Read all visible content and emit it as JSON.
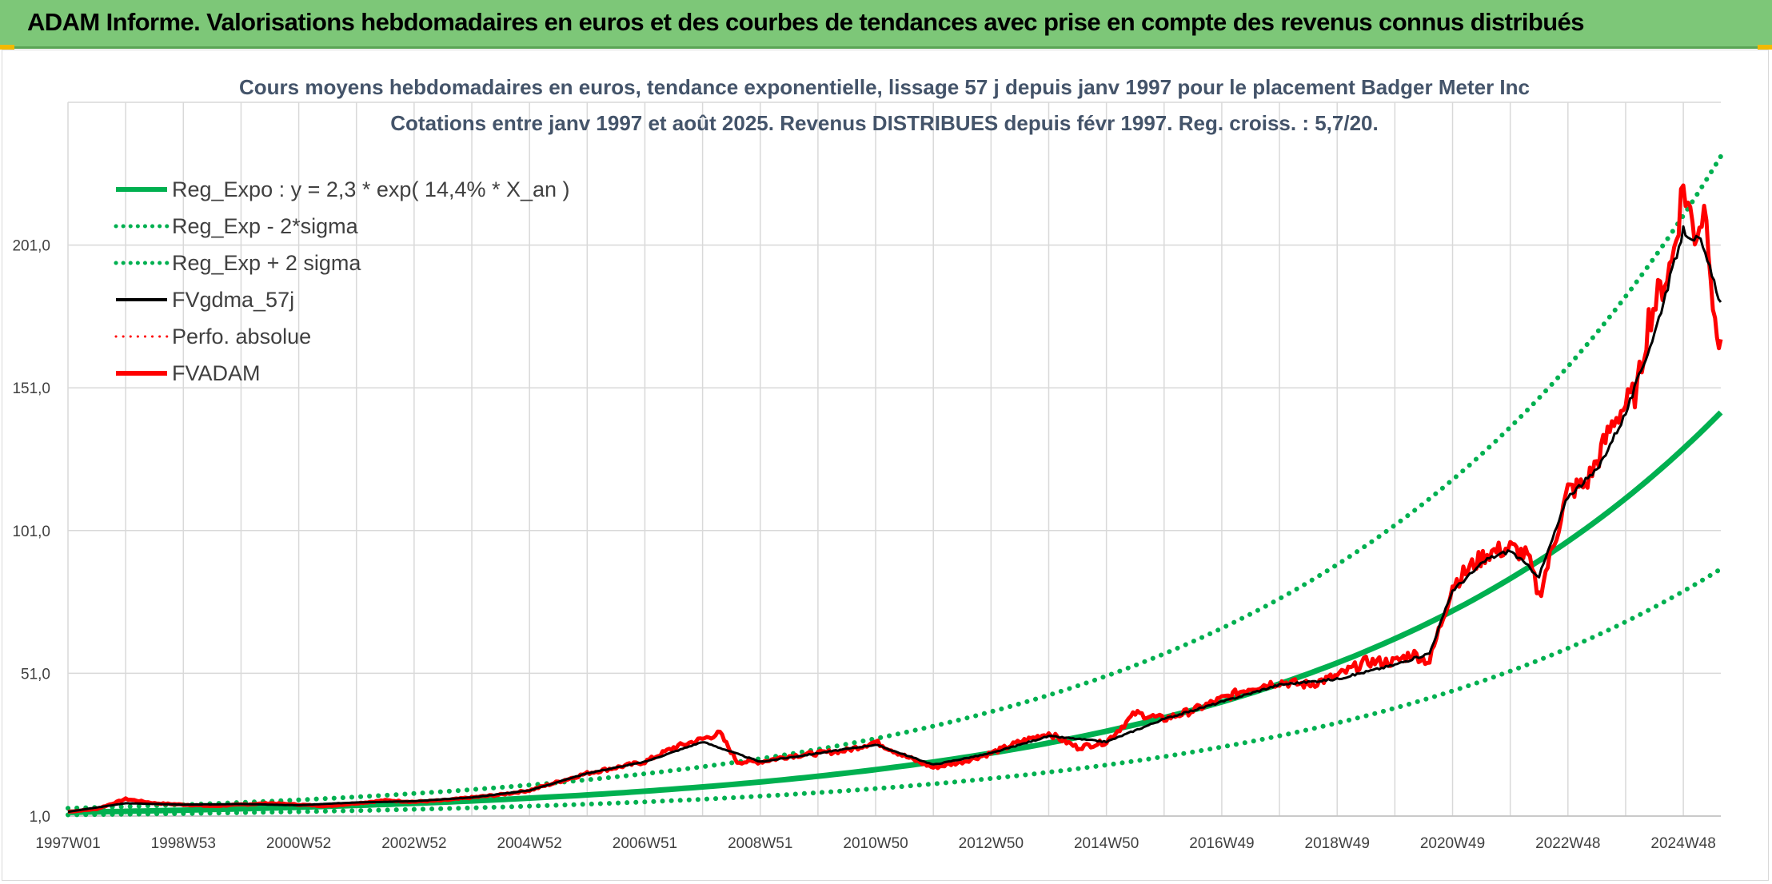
{
  "banner": {
    "title": "ADAM Informe. Valorisations hebdomadaires en euros et des courbes de tendances avec prise en compte des revenus connus distribués"
  },
  "colors": {
    "banner_bg": "#7dc778",
    "reg_expo": "#00b050",
    "fvgdma": "#000000",
    "fvadam": "#ff0000",
    "perfo": "#ff0000",
    "grid": "#d9d9d9",
    "title_text": "#44546a"
  },
  "chart_data": {
    "type": "line",
    "title": "Cours moyens hebdomadaires en euros, tendance exponentielle, lissage 57 j depuis janv 1997 pour le placement Badger Meter Inc",
    "subtitle": "Cotations entre janv 1997 et août 2025. Revenus DISTRIBUES depuis févr 1997. Reg. croiss. : 5,7/20.",
    "x_tick_labels": [
      "1997W01",
      "1998W53",
      "2000W52",
      "2002W52",
      "2004W52",
      "2006W51",
      "2008W51",
      "2010W50",
      "2012W50",
      "2014W50",
      "2016W49",
      "2018W49",
      "2020W49",
      "2022W48",
      "2024W48"
    ],
    "x_range_years": [
      1997.0,
      2025.65
    ],
    "y_tick_labels": [
      "1,0",
      "51,0",
      "101,0",
      "151,0",
      "201,0"
    ],
    "y_ticks": [
      1,
      51,
      101,
      151,
      201
    ],
    "ylim": [
      1,
      251
    ],
    "grid": true,
    "legend_position": "top-left",
    "legend": [
      {
        "label": "Reg_Expo : y = 2,3 * exp( 14,4% *  X_an )",
        "style": "solid-thick",
        "color": "#00b050"
      },
      {
        "label": "Reg_Exp - 2*sigma",
        "style": "dotted",
        "color": "#00b050"
      },
      {
        "label": "Reg_Exp + 2 sigma",
        "style": "dotted",
        "color": "#00b050"
      },
      {
        "label": "FVgdma_57j",
        "style": "solid",
        "color": "#000000"
      },
      {
        "label": "Perfo. absolue",
        "style": "dotted",
        "color": "#ff0000"
      },
      {
        "label": "FVADAM",
        "style": "solid-thick",
        "color": "#ff0000"
      }
    ],
    "trend": {
      "a": 2.3,
      "growth": 0.144,
      "lower_factor": 0.615,
      "upper_factor": 1.63
    },
    "series": [
      {
        "name": "FVADAM",
        "x": [
          1997.0,
          1997.5,
          1998.0,
          1998.5,
          1999.0,
          1999.5,
          2000.0,
          2000.5,
          2001.0,
          2001.5,
          2002.0,
          2002.5,
          2003.0,
          2003.5,
          2004.0,
          2004.5,
          2005.0,
          2005.5,
          2006.0,
          2006.5,
          2007.0,
          2007.5,
          2008.0,
          2008.3,
          2008.6,
          2009.0,
          2009.5,
          2010.0,
          2010.5,
          2011.0,
          2011.5,
          2012.0,
          2012.5,
          2013.0,
          2013.5,
          2014.0,
          2014.5,
          2015.0,
          2015.5,
          2016.0,
          2016.5,
          2017.0,
          2017.5,
          2018.0,
          2018.5,
          2019.0,
          2019.5,
          2020.0,
          2020.3,
          2020.6,
          2021.0,
          2021.3,
          2021.6,
          2022.0,
          2022.3,
          2022.5,
          2022.8,
          2023.0,
          2023.3,
          2023.5,
          2023.8,
          2024.0,
          2024.2,
          2024.4,
          2024.6,
          2024.8,
          2025.0,
          2025.2,
          2025.4,
          2025.55,
          2025.65
        ],
        "y": [
          2.5,
          3.5,
          7.0,
          5.5,
          5.0,
          4.5,
          5.0,
          5.5,
          5.0,
          4.5,
          5.5,
          6.5,
          6.0,
          6.5,
          7.5,
          8.5,
          10.0,
          13.0,
          16.0,
          18.0,
          20.0,
          25.0,
          28.0,
          30.0,
          20.0,
          20.0,
          22.0,
          23.0,
          24.0,
          27.0,
          22.0,
          18.0,
          20.0,
          23.0,
          27.0,
          30.0,
          25.0,
          27.0,
          37.0,
          35.0,
          38.0,
          42.0,
          46.0,
          48.0,
          47.0,
          50.0,
          55.0,
          55.0,
          58.0,
          55.0,
          82.0,
          88.0,
          93.0,
          95.0,
          92.0,
          78.0,
          100.0,
          115.0,
          117.0,
          125.0,
          140.0,
          145.0,
          150.0,
          175.0,
          185.0,
          195.0,
          222.0,
          205.0,
          215.0,
          170.0,
          168.0
        ]
      },
      {
        "name": "FVgdma_57j",
        "x": [
          1997.0,
          1998.0,
          1999.0,
          2000.0,
          2001.0,
          2002.0,
          2003.0,
          2004.0,
          2005.0,
          2006.0,
          2007.0,
          2008.0,
          2009.0,
          2010.0,
          2011.0,
          2012.0,
          2013.0,
          2014.0,
          2015.0,
          2016.0,
          2017.0,
          2018.0,
          2019.0,
          2020.0,
          2020.6,
          2021.0,
          2021.6,
          2022.0,
          2022.5,
          2023.0,
          2023.5,
          2024.0,
          2024.5,
          2025.0,
          2025.3,
          2025.65
        ],
        "y": [
          2.5,
          5.5,
          5.0,
          5.2,
          4.8,
          5.8,
          6.2,
          7.5,
          10.0,
          16.0,
          20.0,
          27.0,
          20.0,
          23.0,
          26.0,
          19.0,
          23.0,
          29.0,
          27.0,
          35.0,
          41.0,
          47.0,
          49.0,
          54.0,
          58.0,
          80.0,
          91.0,
          94.0,
          85.0,
          113.0,
          122.0,
          142.0,
          170.0,
          206.0,
          202.0,
          181.0
        ]
      }
    ]
  }
}
